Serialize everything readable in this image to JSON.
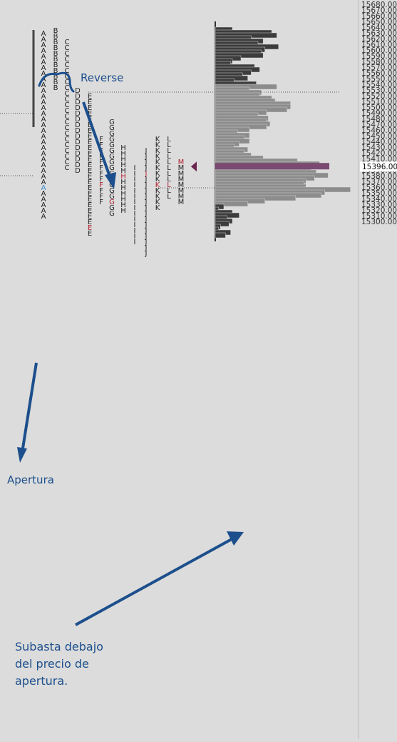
{
  "chart_data": {
    "type": "bar",
    "chart_kind": "market-profile",
    "y_axis": {
      "range": [
        15300,
        15680
      ],
      "step": 10,
      "position": "right"
    },
    "highlighted_price": {
      "label": "15396.00",
      "value": 15396,
      "color": "#7a4a72"
    },
    "value_area": {
      "high": 15525,
      "low": 15360
    },
    "open_line_prices": [
      15489,
      15380
    ],
    "tpo_columns": [
      {
        "letter": "A",
        "high": 15620,
        "low": 15470,
        "highlight": [
          {
            "price": 15495,
            "color": "#3d8fd1"
          }
        ]
      },
      {
        "letter": "B",
        "high": 15635,
        "low": 15585
      },
      {
        "letter": "C",
        "high": 15615,
        "low": 15505
      },
      {
        "letter": "D",
        "high": 15530,
        "low": 15460
      },
      {
        "letter": "E",
        "high": 15520,
        "low": 15400,
        "highlight": [
          {
            "price": 15405,
            "color": "#b01e2e"
          }
        ]
      },
      {
        "letter": "F",
        "high": 15445,
        "low": 15390,
        "highlight": [
          {
            "price": 15405,
            "color": "#b01e2e"
          }
        ]
      },
      {
        "letter": "G",
        "high": 15475,
        "low": 15395,
        "highlight": [
          {
            "price": 15405,
            "color": "#b01e2e"
          }
        ]
      },
      {
        "letter": "H",
        "high": 15430,
        "low": 15375,
        "highlight": [
          {
            "price": 15405,
            "color": "#b01e2e"
          }
        ]
      },
      {
        "letter": "I",
        "high": 15395,
        "low": 15330
      },
      {
        "letter": "J",
        "high": 15425,
        "low": 15335,
        "highlight": [
          {
            "price": 15405,
            "color": "#b01e2e"
          }
        ]
      },
      {
        "letter": "K",
        "high": 15445,
        "low": 15385,
        "highlight": [
          {
            "price": 15405,
            "color": "#b01e2e"
          }
        ]
      },
      {
        "letter": "L",
        "high": 15445,
        "low": 15395,
        "highlight": [
          {
            "price": 15405,
            "color": "#b01e2e"
          }
        ]
      },
      {
        "letter": "M",
        "high": 15405,
        "low": 15370,
        "highlight": [
          {
            "price": 15405,
            "color": "#b01e2e"
          }
        ]
      }
    ],
    "volume_profile": [
      {
        "price": 15635,
        "volume": 20
      },
      {
        "price": 15630,
        "volume": 66
      },
      {
        "price": 15625,
        "volume": 72
      },
      {
        "price": 15620,
        "volume": 42
      },
      {
        "price": 15615,
        "volume": 56
      },
      {
        "price": 15610,
        "volume": 50
      },
      {
        "price": 15605,
        "volume": 74
      },
      {
        "price": 15600,
        "volume": 58
      },
      {
        "price": 15595,
        "volume": 54
      },
      {
        "price": 15590,
        "volume": 56
      },
      {
        "price": 15585,
        "volume": 30
      },
      {
        "price": 15580,
        "volume": 20
      },
      {
        "price": 15575,
        "volume": 18
      },
      {
        "price": 15570,
        "volume": 46
      },
      {
        "price": 15565,
        "volume": 52
      },
      {
        "price": 15560,
        "volume": 42
      },
      {
        "price": 15555,
        "volume": 32
      },
      {
        "price": 15550,
        "volume": 38
      },
      {
        "price": 15545,
        "volume": 22
      },
      {
        "price": 15540,
        "volume": 48
      },
      {
        "price": 15535,
        "volume": 72
      },
      {
        "price": 15530,
        "volume": 40
      },
      {
        "price": 15525,
        "volume": 54
      },
      {
        "price": 15520,
        "volume": 52
      },
      {
        "price": 15515,
        "volume": 66
      },
      {
        "price": 15510,
        "volume": 70
      },
      {
        "price": 15505,
        "volume": 88
      },
      {
        "price": 15500,
        "volume": 88
      },
      {
        "price": 15495,
        "volume": 84
      },
      {
        "price": 15490,
        "volume": 60
      },
      {
        "price": 15485,
        "volume": 50
      },
      {
        "price": 15480,
        "volume": 62
      },
      {
        "price": 15475,
        "volume": 60
      },
      {
        "price": 15470,
        "volume": 64
      },
      {
        "price": 15465,
        "volume": 60
      },
      {
        "price": 15460,
        "volume": 40
      },
      {
        "price": 15455,
        "volume": 26
      },
      {
        "price": 15450,
        "volume": 40
      },
      {
        "price": 15445,
        "volume": 34
      },
      {
        "price": 15440,
        "volume": 40
      },
      {
        "price": 15435,
        "volume": 28
      },
      {
        "price": 15430,
        "volume": 22
      },
      {
        "price": 15425,
        "volume": 38
      },
      {
        "price": 15420,
        "volume": 34
      },
      {
        "price": 15415,
        "volume": 42
      },
      {
        "price": 15410,
        "volume": 56
      },
      {
        "price": 15405,
        "volume": 96
      },
      {
        "price": 15400,
        "volume": 122
      },
      {
        "price": 15395,
        "volume": 132
      },
      {
        "price": 15390,
        "volume": 112
      },
      {
        "price": 15385,
        "volume": 118
      },
      {
        "price": 15380,
        "volume": 132
      },
      {
        "price": 15375,
        "volume": 116
      },
      {
        "price": 15370,
        "volume": 106
      },
      {
        "price": 15365,
        "volume": 104
      },
      {
        "price": 15360,
        "volume": 106
      },
      {
        "price": 15355,
        "volume": 158
      },
      {
        "price": 15350,
        "volume": 128
      },
      {
        "price": 15345,
        "volume": 124
      },
      {
        "price": 15340,
        "volume": 94
      },
      {
        "price": 15335,
        "volume": 58
      },
      {
        "price": 15330,
        "volume": 38
      },
      {
        "price": 15325,
        "volume": 10
      },
      {
        "price": 15320,
        "volume": 4
      },
      {
        "price": 15315,
        "volume": 20
      },
      {
        "price": 15310,
        "volume": 28
      },
      {
        "price": 15305,
        "volume": 14
      },
      {
        "price": 15300,
        "volume": 20
      },
      {
        "price": 15295,
        "volume": 16
      },
      {
        "price": 15290,
        "volume": 6
      },
      {
        "price": 15285,
        "volume": 4
      },
      {
        "price": 15280,
        "volume": 18
      },
      {
        "price": 15275,
        "volume": 12
      }
    ],
    "annotations": [
      {
        "text": "Reverse"
      },
      {
        "text": "Apertura"
      },
      {
        "text": "Subasta debajo del precio de apertura.",
        "lines": [
          "Subasta debajo",
          "del precio de",
          "apertura."
        ]
      }
    ],
    "colors": {
      "background": "#dcdcdc",
      "axis_panel": "#dcdcdc",
      "bar_dark": "#3c3c3c",
      "bar_light": "#8c8c8c",
      "annotation": "#1c4f8c",
      "text": "#222222"
    },
    "grid": false
  }
}
